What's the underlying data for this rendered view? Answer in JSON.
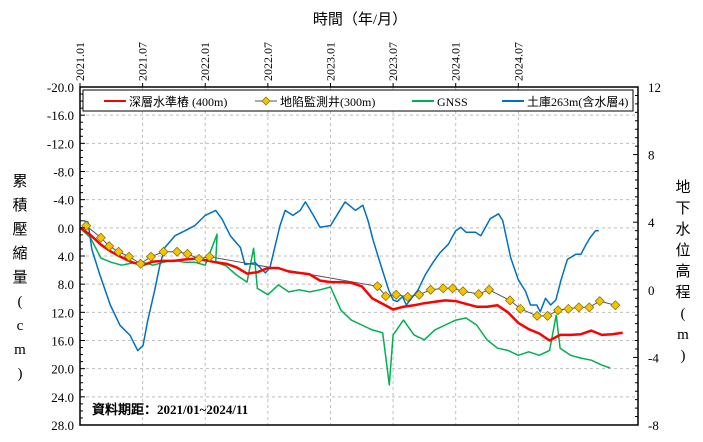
{
  "chart_data": {
    "type": "line",
    "title": "",
    "xlabel": "時間（年/月）",
    "ylabel_left": "累積壓縮量（cm）",
    "ylabel_right": "地下水位高程(m)",
    "x_ticks": [
      "2021.01",
      "2021.07",
      "2022.01",
      "2022.07",
      "2023.01",
      "2023.07",
      "2024.01",
      "2024.07"
    ],
    "xlim": [
      "2021-01-01",
      "2025-06-15"
    ],
    "ylim_left": [
      -20,
      28
    ],
    "ylim_left_inverted": true,
    "y_ticks_left": [
      "-20.0",
      "-16.0",
      "-12.0",
      "-8.0",
      "-4.0",
      "0.0",
      "4.0",
      "8.0",
      "12.0",
      "16.0",
      "20.0",
      "24.0",
      "28.0"
    ],
    "ylim_right": [
      -8,
      12
    ],
    "y_ticks_right": [
      "12",
      "8",
      "4",
      "0",
      "-4",
      "-8"
    ],
    "grid": true,
    "legend_position": "top",
    "annotation": "資料期距：2021/01~2024/11",
    "series": [
      {
        "name": "深層水準樁 (400m)",
        "axis": "left",
        "color": "#ff0000",
        "marker": "none",
        "x": [
          "2021-01",
          "2021-02",
          "2021-03",
          "2021-04",
          "2021-05",
          "2021-06",
          "2021-07",
          "2021-08",
          "2021-09",
          "2021-10",
          "2021-11",
          "2021-12",
          "2022-01",
          "2022-02",
          "2022-03",
          "2022-04",
          "2022-05",
          "2022-06",
          "2022-07",
          "2022-08",
          "2022-09",
          "2022-10",
          "2022-11",
          "2022-12",
          "2023-01",
          "2023-02",
          "2023-03",
          "2023-04",
          "2023-05",
          "2023-06",
          "2023-07",
          "2023-08",
          "2023-09",
          "2023-10",
          "2023-11",
          "2023-12",
          "2024-01",
          "2024-02",
          "2024-03",
          "2024-04",
          "2024-05",
          "2024-06",
          "2024-07",
          "2024-08",
          "2024-09",
          "2024-10",
          "2024-11",
          "2024-12",
          "2025-01",
          "2025-02",
          "2025-03",
          "2025-04",
          "2025-05"
        ],
        "y": [
          0.0,
          1.0,
          2.4,
          3.4,
          4.2,
          4.9,
          5.3,
          4.8,
          4.7,
          4.7,
          4.5,
          4.4,
          4.6,
          4.9,
          5.1,
          5.6,
          6.5,
          6.3,
          5.7,
          5.7,
          6.2,
          6.4,
          6.6,
          7.5,
          7.7,
          7.7,
          7.8,
          8.3,
          10.0,
          10.8,
          11.6,
          11.2,
          11.0,
          10.7,
          10.5,
          10.3,
          10.4,
          10.8,
          11.2,
          11.2,
          11.0,
          12.0,
          13.5,
          14.4,
          15.0,
          16.0,
          15.2,
          15.2,
          15.1,
          14.6,
          15.2,
          15.1,
          14.9
        ]
      },
      {
        "name": "地陷監測井(300m)",
        "axis": "left",
        "color": "#f5c400",
        "marker": "diamond",
        "line_color": "#555555",
        "x": [
          "2021-01-19",
          "2021-03-01",
          "2021-03-25",
          "2021-04-22",
          "2021-05-22",
          "2021-06-25",
          "2021-07-25",
          "2021-09-01",
          "2021-10-10",
          "2021-11-10",
          "2021-12-13",
          "2022-01-13",
          "2023-05-16",
          "2023-06-10",
          "2023-07-10",
          "2023-08-13",
          "2023-09-16",
          "2023-10-19",
          "2023-11-25",
          "2023-12-22",
          "2024-01-22",
          "2024-03-07",
          "2024-04-07",
          "2024-06-07",
          "2024-07-07",
          "2024-08-25",
          "2024-09-25",
          "2024-10-25",
          "2024-11-25",
          "2024-12-25",
          "2025-01-25",
          "2025-02-25",
          "2025-04-10"
        ],
        "y": [
          -0.3,
          1.4,
          2.6,
          3.4,
          4.1,
          5.1,
          4.1,
          3.4,
          3.4,
          3.7,
          4.4,
          4.1,
          8.3,
          9.7,
          9.5,
          9.8,
          9.5,
          8.8,
          8.6,
          8.6,
          9.0,
          9.4,
          8.8,
          10.3,
          11.5,
          12.5,
          12.5,
          11.7,
          11.5,
          11.3,
          11.3,
          10.4,
          11.0
        ]
      },
      {
        "name": "GNSS",
        "axis": "left",
        "color": "#00b050",
        "marker": "none",
        "x": [
          "2021-01",
          "2021-02",
          "2021-03",
          "2021-04",
          "2021-05",
          "2021-06",
          "2021-07",
          "2021-08",
          "2021-09",
          "2021-10",
          "2021-11",
          "2021-12",
          "2022-01",
          "2022-02-05",
          "2022-02",
          "2022-03",
          "2022-04",
          "2022-05",
          "2022-05-20",
          "2022-06",
          "2022-07",
          "2022-08",
          "2022-09",
          "2022-10",
          "2022-11",
          "2022-12",
          "2023-01",
          "2023-02",
          "2023-03",
          "2023-04",
          "2023-05",
          "2023-06",
          "2023-06-20",
          "2023-07",
          "2023-08",
          "2023-09",
          "2023-10",
          "2023-11",
          "2023-12",
          "2024-01",
          "2024-02",
          "2024-03",
          "2024-04",
          "2024-05",
          "2024-06",
          "2024-07",
          "2024-08",
          "2024-09",
          "2024-10",
          "2024-10-20",
          "2024-11",
          "2024-12",
          "2025-01",
          "2025-02",
          "2025-03",
          "2025-03-25"
        ],
        "y": [
          0.0,
          1.4,
          4.3,
          4.9,
          5.3,
          5.0,
          4.9,
          5.3,
          4.9,
          4.6,
          4.9,
          4.9,
          5.3,
          0.9,
          4.9,
          5.4,
          6.7,
          7.7,
          2.9,
          8.6,
          9.5,
          8.1,
          9.1,
          8.8,
          9.1,
          8.8,
          8.4,
          11.7,
          13.1,
          13.8,
          14.5,
          14.9,
          22.3,
          15.2,
          13.1,
          15.2,
          15.9,
          14.5,
          13.8,
          13.1,
          12.8,
          13.8,
          15.9,
          17.1,
          17.4,
          18.1,
          17.6,
          18.1,
          17.4,
          12.4,
          17.1,
          18.1,
          18.5,
          18.8,
          19.5,
          19.9
        ]
      },
      {
        "name": "土庫263m(含水層4)",
        "axis": "right",
        "color": "#0070c0",
        "marker": "none",
        "x": [
          "2021-01-10",
          "2021-01-24",
          "2021-02-05",
          "2021-02-28",
          "2021-03-28",
          "2021-04-26",
          "2021-05-25",
          "2021-06-17",
          "2021-07-02",
          "2021-07-16",
          "2021-08-06",
          "2021-08-21",
          "2021-09-05",
          "2021-10-04",
          "2021-11-03",
          "2021-12-01",
          "2022-01-01",
          "2022-02-01",
          "2022-02-19",
          "2022-03-13",
          "2022-04-12",
          "2022-04-25",
          "2022-05-25",
          "2022-06-24",
          "2022-07-07",
          "2022-08-06",
          "2022-08-21",
          "2022-09-13",
          "2022-10-04",
          "2022-10-19",
          "2022-11-12",
          "2022-12-01",
          "2023-01-01",
          "2023-02-01",
          "2023-02-13",
          "2023-03-13",
          "2023-04-04",
          "2023-04-19",
          "2023-05-04",
          "2023-05-25",
          "2023-06-18",
          "2023-07-01",
          "2023-07-13",
          "2023-07-28",
          "2023-08-09",
          "2023-09-13",
          "2023-10-04",
          "2023-10-25",
          "2023-11-16",
          "2023-12-10",
          "2024-01-01",
          "2024-01-16",
          "2024-02-01",
          "2024-02-28",
          "2024-03-13",
          "2024-04-10",
          "2024-05-04",
          "2024-05-16",
          "2024-06-09",
          "2024-07-01",
          "2024-07-22",
          "2024-08-06",
          "2024-08-24",
          "2024-09-04",
          "2024-09-19",
          "2024-10-04",
          "2024-10-19",
          "2024-11-04",
          "2024-11-22",
          "2024-12-16",
          "2025-01-01",
          "2025-01-16",
          "2025-01-28",
          "2025-02-13",
          "2025-02-22"
        ],
        "y": [
          4.1,
          4.0,
          2.4,
          0.9,
          -0.9,
          -2.1,
          -2.7,
          -3.6,
          -3.3,
          -1.8,
          0.0,
          1.5,
          2.5,
          3.2,
          3.5,
          3.8,
          4.4,
          4.7,
          4.2,
          3.2,
          2.5,
          1.5,
          1.6,
          1.0,
          1.3,
          3.8,
          4.7,
          4.4,
          4.7,
          5.2,
          4.4,
          3.7,
          3.8,
          4.8,
          5.2,
          4.7,
          5.0,
          4.1,
          2.9,
          1.5,
          0.0,
          -0.6,
          -0.7,
          -0.4,
          -0.9,
          0.0,
          0.9,
          1.6,
          2.2,
          2.7,
          3.5,
          3.7,
          3.4,
          3.4,
          3.2,
          4.2,
          4.5,
          4.1,
          1.9,
          0.6,
          -0.1,
          -0.9,
          -0.9,
          -1.3,
          -0.5,
          -0.9,
          -0.6,
          0.6,
          1.8,
          2.1,
          2.1,
          2.7,
          3.1,
          3.5,
          3.5
        ]
      }
    ]
  }
}
